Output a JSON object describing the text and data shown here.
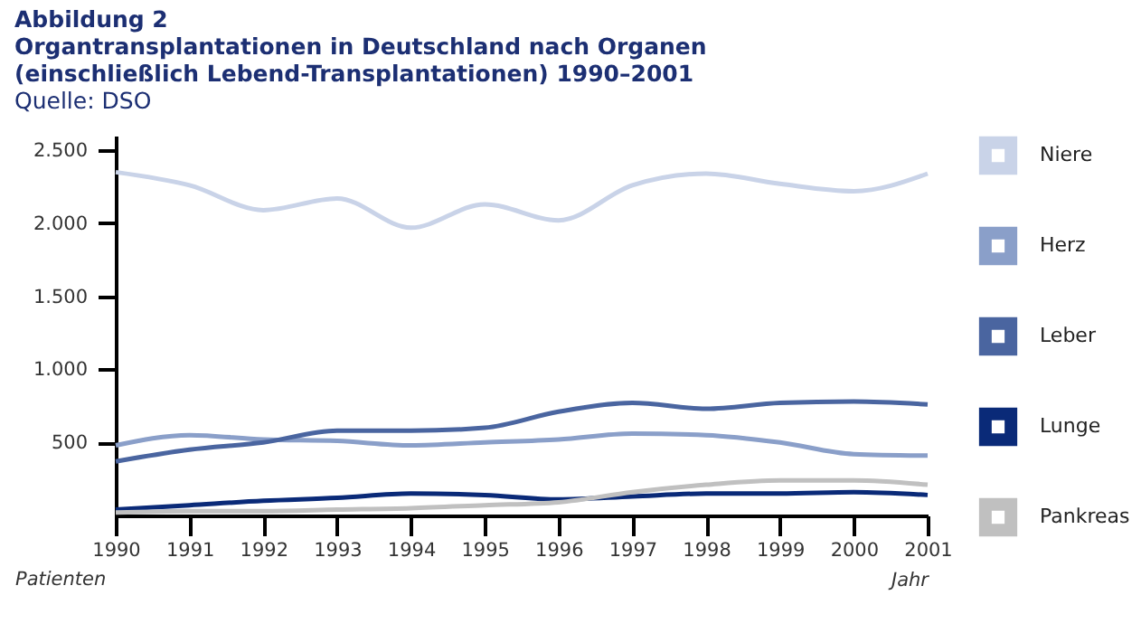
{
  "chart_data": {
    "type": "line",
    "title": "Organtransplantationen in Deutschland nach Organen (einschließlich Lebend-Transplantationen) 1990–2001",
    "annotations": [
      "Abbildung 2",
      "Quelle: DSO"
    ],
    "xlabel": "Jahr",
    "ylabel": "Patienten",
    "x": [
      1990,
      1991,
      1992,
      1993,
      1994,
      1995,
      1996,
      1997,
      1998,
      1999,
      2000,
      2001
    ],
    "series": [
      {
        "name": "Niere",
        "color": "#c9d3e8",
        "values": [
          2350,
          2260,
          2090,
          2170,
          1970,
          2130,
          2020,
          2260,
          2340,
          2270,
          2220,
          2340
        ]
      },
      {
        "name": "Herz",
        "color": "#8a9fc9",
        "values": [
          480,
          550,
          520,
          510,
          480,
          500,
          520,
          560,
          550,
          500,
          420,
          410
        ]
      },
      {
        "name": "Leber",
        "color": "#4a65a0",
        "values": [
          370,
          450,
          500,
          580,
          580,
          600,
          710,
          770,
          730,
          770,
          780,
          760
        ]
      },
      {
        "name": "Lunge",
        "color": "#0a2a78",
        "values": [
          40,
          70,
          100,
          120,
          150,
          140,
          110,
          130,
          150,
          150,
          160,
          140
        ]
      },
      {
        "name": "Pankreas",
        "color": "#c0c0c0",
        "values": [
          20,
          30,
          30,
          40,
          50,
          70,
          90,
          160,
          210,
          240,
          240,
          210
        ]
      }
    ],
    "xlim": [
      1990,
      2001
    ],
    "xticks": [
      1990,
      1991,
      1992,
      1993,
      1994,
      1995,
      1996,
      1997,
      1998,
      1999,
      2000,
      2001
    ],
    "ylim": [
      0,
      2600
    ],
    "yticks": [
      {
        "value": 500,
        "label": "500"
      },
      {
        "value": 1000,
        "label": "1.000"
      },
      {
        "value": 1500,
        "label": "1.500"
      },
      {
        "value": 2000,
        "label": "2.000"
      },
      {
        "value": 2500,
        "label": "2.500"
      }
    ],
    "grid": false,
    "legend": "right",
    "marker": "none",
    "line_style": "solid"
  }
}
